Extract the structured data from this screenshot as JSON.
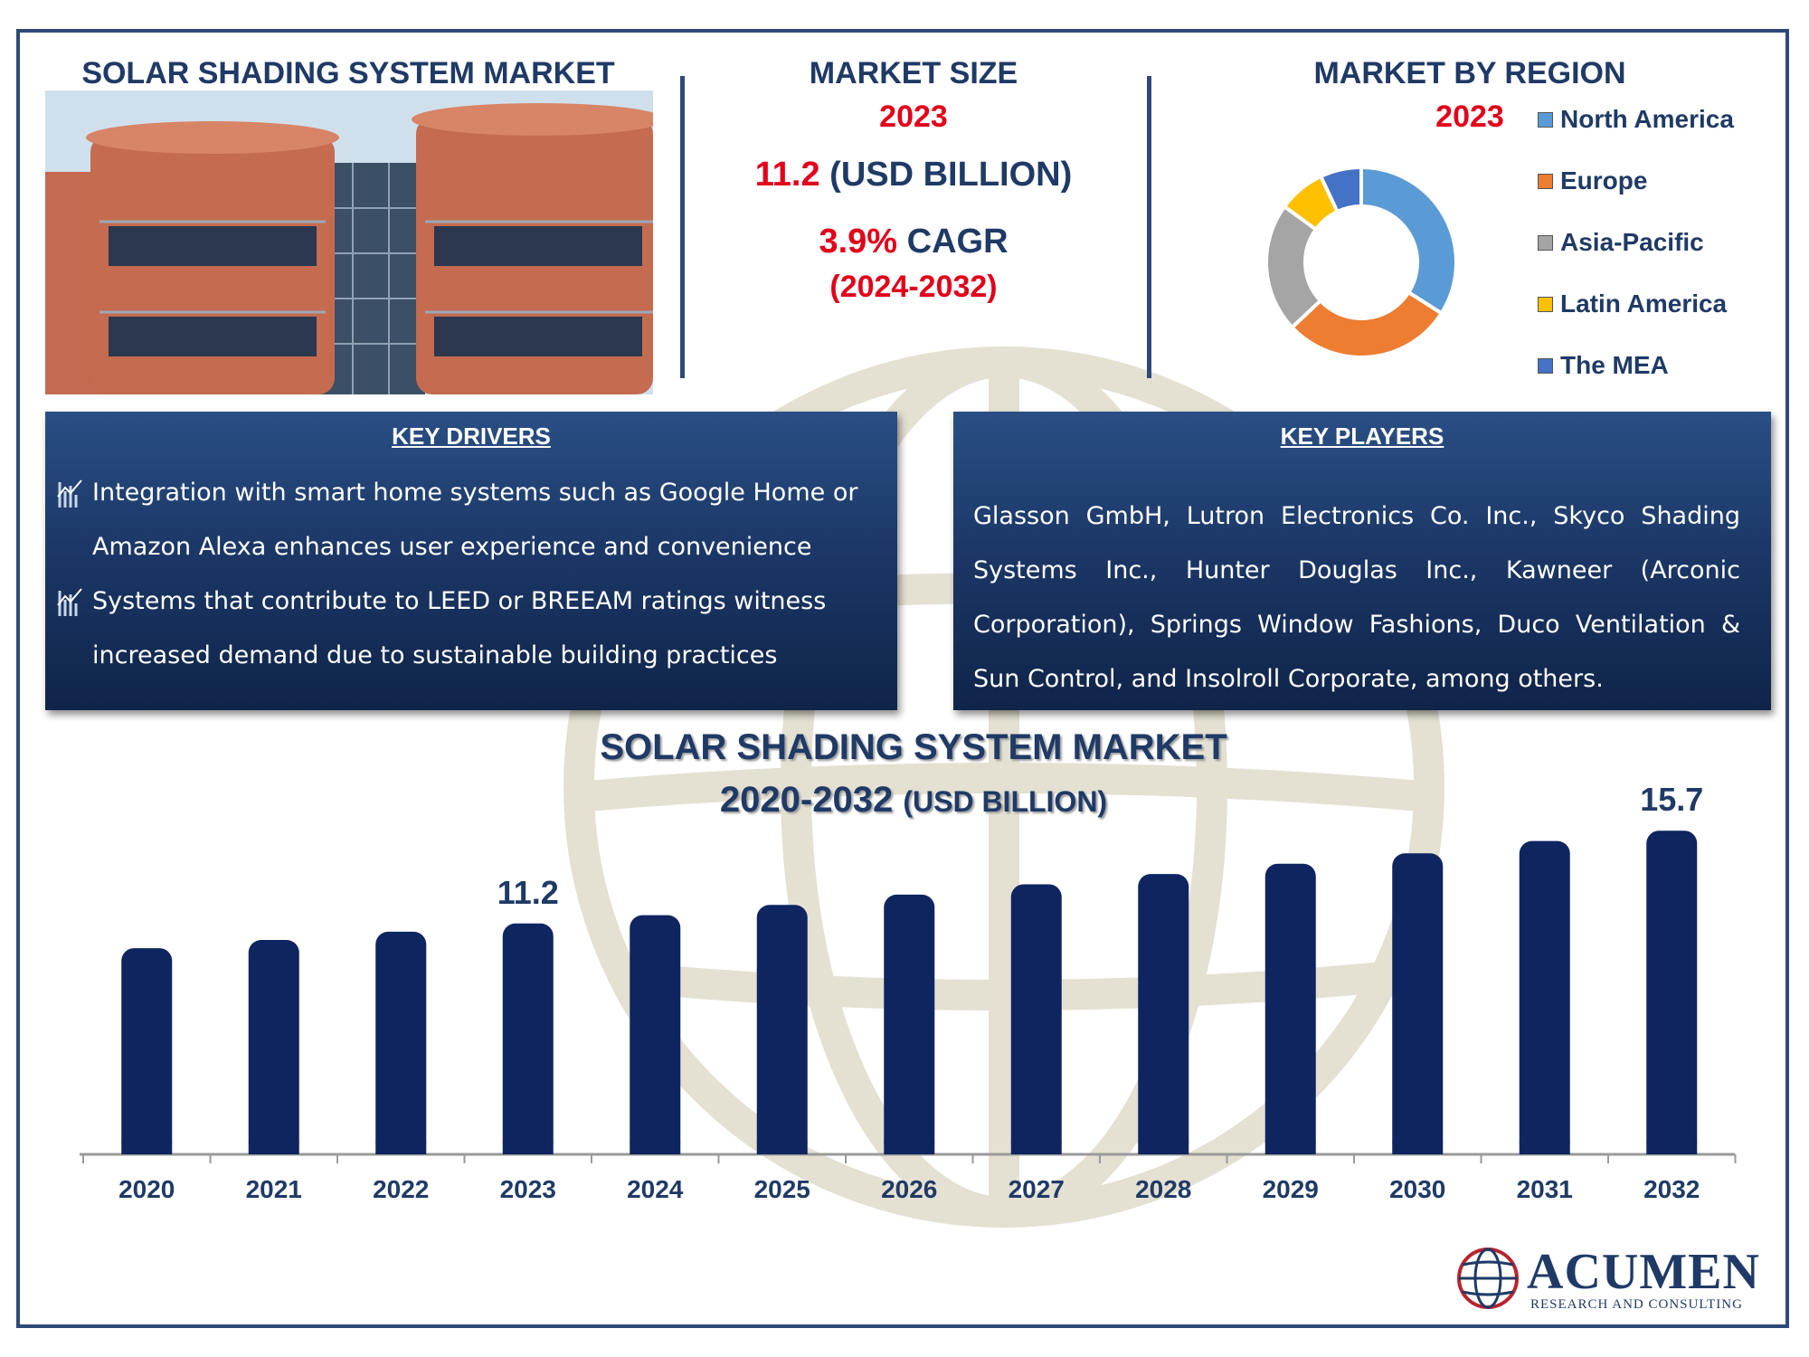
{
  "header": {
    "title": "SOLAR SHADING SYSTEM MARKET",
    "market_size_label": "MARKET SIZE",
    "market_size_year": "2023",
    "market_size_value": "11.2",
    "market_size_unit": "(USD BILLION)",
    "cagr_value": "3.9%",
    "cagr_label": "CAGR",
    "cagr_period": "(2024-2032)",
    "region_label": "MARKET BY REGION",
    "region_year": "2023"
  },
  "regions": {
    "legend": [
      {
        "name": "North America",
        "color": "#5b9bd5"
      },
      {
        "name": "Europe",
        "color": "#ed7d31"
      },
      {
        "name": "Asia-Pacific",
        "color": "#a5a5a5"
      },
      {
        "name": "Latin America",
        "color": "#ffc000"
      },
      {
        "name": "The MEA",
        "color": "#4472c4"
      }
    ]
  },
  "key_drivers": {
    "title": "KEY DRIVERS",
    "items": [
      "Integration with smart home systems such as Google Home or Amazon Alexa enhances user experience and convenience",
      "Systems that contribute to LEED or BREEAM ratings witness increased demand due to sustainable building practices"
    ]
  },
  "key_players": {
    "title": "KEY PLAYERS",
    "text": "Glasson GmbH, Lutron Electronics Co. Inc., Skyco Shading Systems Inc., Hunter Douglas Inc., Kawneer (Arconic Corporation), Springs Window Fashions, Duco Ventilation & Sun Control, and Insolroll Corporate, among others."
  },
  "bar_chart": {
    "title_line1": "SOLAR SHADING SYSTEM MARKET",
    "title_years": "2020-2032",
    "title_unit": "(USD BILLION)"
  },
  "logo": {
    "name": "ACUMEN",
    "tagline": "RESEARCH AND CONSULTING"
  },
  "chart_data": [
    {
      "type": "bar",
      "title": "SOLAR SHADING SYSTEM MARKET 2020-2032 (USD BILLION)",
      "categories": [
        "2020",
        "2021",
        "2022",
        "2023",
        "2024",
        "2025",
        "2026",
        "2027",
        "2028",
        "2029",
        "2030",
        "2031",
        "2032"
      ],
      "values": [
        10.0,
        10.4,
        10.8,
        11.2,
        11.6,
        12.1,
        12.6,
        13.1,
        13.6,
        14.1,
        14.6,
        15.2,
        15.7
      ],
      "data_labels": {
        "2023": "11.2",
        "2032": "15.7"
      },
      "ylim": [
        0,
        16.5
      ],
      "bar_color": "#0f2560",
      "grid": false,
      "legend": "none"
    },
    {
      "type": "pie",
      "variant": "donut",
      "categories": [
        "North America",
        "Europe",
        "Asia-Pacific",
        "Latin America",
        "The MEA"
      ],
      "values": [
        34,
        29,
        22,
        8,
        7
      ],
      "colors": [
        "#5b9bd5",
        "#ed7d31",
        "#a5a5a5",
        "#ffc000",
        "#4472c4"
      ],
      "legend": "right"
    }
  ]
}
